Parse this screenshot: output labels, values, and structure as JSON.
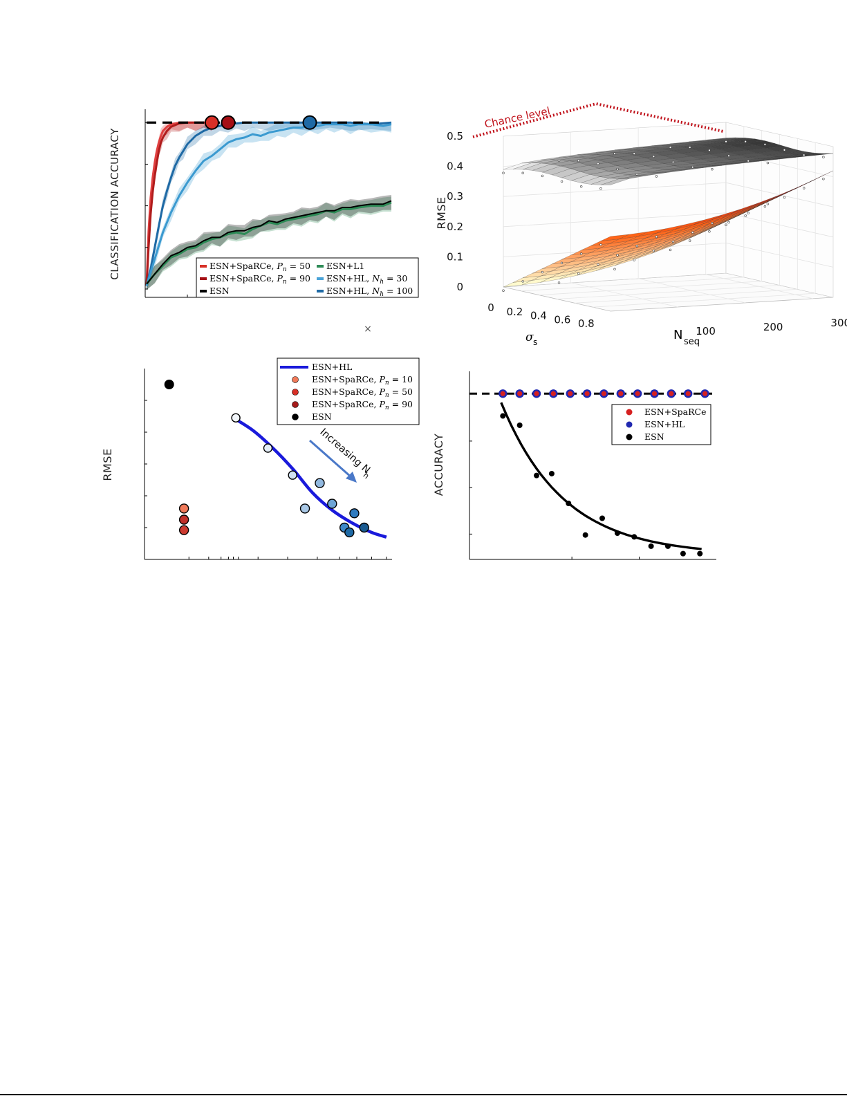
{
  "chart_data": [
    {
      "id": "panel-a",
      "type": "line",
      "ylabel": "CLASSIFICATION ACCURACY",
      "xlabel": "",
      "stray_mark": "×",
      "reference_line": "dashed",
      "legend": {
        "placement": "bottom-right",
        "entries": [
          {
            "key": "sparce50",
            "prefix": "ESN+SpaRCe, ",
            "var": "P",
            "sub": "n",
            "suffix": " = 50",
            "color": "#d73027"
          },
          {
            "key": "sparce90",
            "prefix": "ESN+SpaRCe, ",
            "var": "P",
            "sub": "n",
            "suffix": " = 90",
            "color": "#a50f15"
          },
          {
            "key": "esn",
            "prefix": "ESN",
            "var": "",
            "sub": "",
            "suffix": "",
            "color": "#000000"
          },
          {
            "key": "l1",
            "prefix": "ESN+L1",
            "var": "",
            "sub": "",
            "suffix": "",
            "color": "#2e8b57"
          },
          {
            "key": "hl30",
            "prefix": "ESN+HL,  ",
            "var": "N",
            "sub": "h",
            "suffix": " = 30",
            "color": "#4aa3d8"
          },
          {
            "key": "hl100",
            "prefix": "ESN+HL, ",
            "var": "N",
            "sub": "h",
            "suffix": " = 100",
            "color": "#1f6aa5"
          }
        ]
      },
      "series": [
        {
          "key": "sparce50",
          "color": "#e04040",
          "x": [
            0,
            0.5,
            1,
            1.5,
            2,
            2.5,
            3,
            3.5,
            4,
            5,
            6,
            8,
            10,
            12,
            14,
            16
          ],
          "y": [
            0.02,
            0.35,
            0.55,
            0.67,
            0.76,
            0.83,
            0.88,
            0.92,
            0.95,
            0.975,
            0.99,
            1.0,
            1.0,
            1.0,
            1.0,
            1.0
          ]
        },
        {
          "key": "sparce90",
          "color": "#b01c1c",
          "x": [
            0,
            0.5,
            1,
            1.5,
            2,
            2.5,
            3,
            3.5,
            4,
            5,
            6,
            8,
            10,
            12,
            14,
            16
          ],
          "y": [
            0.02,
            0.25,
            0.45,
            0.58,
            0.68,
            0.76,
            0.83,
            0.88,
            0.91,
            0.95,
            0.975,
            0.995,
            1.0,
            1.0,
            1.0,
            1.0
          ]
        },
        {
          "key": "hl100",
          "color": "#1f6aa5",
          "x": [
            0,
            1,
            2,
            3,
            4,
            5,
            6,
            7,
            8,
            9,
            10,
            12,
            14,
            16,
            18,
            20,
            22,
            24,
            26,
            30,
            34,
            40,
            45,
            50,
            55,
            60
          ],
          "y": [
            0.02,
            0.12,
            0.25,
            0.38,
            0.5,
            0.59,
            0.67,
            0.74,
            0.79,
            0.83,
            0.87,
            0.92,
            0.95,
            0.97,
            0.98,
            0.99,
            0.995,
            1.0,
            1.0,
            1.0,
            1.0,
            1.0,
            1.0,
            1.0,
            0.99,
            1.0
          ]
        },
        {
          "key": "hl30",
          "color": "#3b9ad0",
          "x": [
            0,
            2,
            4,
            6,
            8,
            10,
            12,
            14,
            16,
            18,
            20,
            22,
            24,
            26,
            28,
            30,
            32,
            34,
            36,
            38,
            40,
            42,
            44,
            46,
            48,
            50,
            52,
            55,
            58,
            60
          ],
          "y": [
            0.02,
            0.18,
            0.34,
            0.46,
            0.56,
            0.64,
            0.71,
            0.77,
            0.8,
            0.84,
            0.88,
            0.9,
            0.91,
            0.93,
            0.92,
            0.94,
            0.95,
            0.96,
            0.97,
            0.97,
            0.98,
            0.98,
            0.99,
            0.99,
            0.99,
            0.98,
            0.99,
            0.99,
            0.98,
            0.99
          ]
        },
        {
          "key": "l1",
          "color": "#2e8b57",
          "x": [
            0,
            2,
            4,
            6,
            8,
            10,
            12,
            14,
            16,
            18,
            20,
            22,
            24,
            26,
            28,
            30,
            32,
            34,
            36,
            38,
            40,
            42,
            44,
            46,
            48,
            50,
            52,
            55,
            58,
            60
          ],
          "y": [
            0.03,
            0.09,
            0.14,
            0.19,
            0.21,
            0.24,
            0.25,
            0.28,
            0.3,
            0.31,
            0.33,
            0.34,
            0.33,
            0.36,
            0.38,
            0.4,
            0.39,
            0.41,
            0.42,
            0.43,
            0.44,
            0.45,
            0.47,
            0.46,
            0.48,
            0.48,
            0.49,
            0.5,
            0.5,
            0.52
          ]
        },
        {
          "key": "esn",
          "color": "#000000",
          "x": [
            0,
            2,
            4,
            6,
            8,
            10,
            12,
            14,
            16,
            18,
            20,
            22,
            24,
            26,
            28,
            30,
            32,
            34,
            36,
            38,
            40,
            42,
            44,
            46,
            48,
            50,
            52,
            55,
            58,
            60
          ],
          "y": [
            0.03,
            0.09,
            0.15,
            0.2,
            0.22,
            0.25,
            0.26,
            0.29,
            0.31,
            0.31,
            0.34,
            0.35,
            0.35,
            0.37,
            0.38,
            0.41,
            0.4,
            0.42,
            0.43,
            0.44,
            0.45,
            0.46,
            0.47,
            0.47,
            0.49,
            0.49,
            0.5,
            0.51,
            0.51,
            0.53
          ]
        }
      ],
      "markers": [
        {
          "x": 16,
          "color": "#d73027"
        },
        {
          "x": 20,
          "color": "#a50f15"
        },
        {
          "x": 40,
          "color": "#1f6aa5"
        }
      ],
      "xlim": [
        0,
        60
      ],
      "ylim": [
        -0.05,
        1.08
      ]
    },
    {
      "id": "panel-b",
      "type": "surface",
      "ylabel": "RMSE",
      "xlabel_main": "σ",
      "xlabel_sub": "s",
      "zlabel_main": "N",
      "zlabel_sub": "seq",
      "annotation": "Chance level",
      "annotation_color": "#c0121b",
      "rmse_ticks": [
        "0",
        "0.1",
        "0.2",
        "0.3",
        "0.4",
        "0.5"
      ],
      "sigma_ticks": [
        "0",
        "0.2",
        "0.4",
        "0.6",
        "0.8"
      ],
      "nseq_ticks": [
        "100",
        "200",
        "300"
      ],
      "sigma_range": [
        0,
        0.9
      ],
      "nseq_range": [
        0,
        330
      ],
      "surfaces": [
        {
          "name": "",
          "colormap": "gray",
          "rmse_near": 0.39,
          "rmse_far": 0.48
        },
        {
          "name": "",
          "colormap": "hot",
          "rmse_near": 0.0,
          "rmse_far": 0.4
        }
      ]
    },
    {
      "id": "panel-c",
      "type": "scatter",
      "ylabel": "RMSE",
      "legend": {
        "placement": "top-right",
        "entries": [
          {
            "key": "hl",
            "prefix": "ESN+HL",
            "var": "",
            "sub": "",
            "suffix": "",
            "color": "#1a1adb",
            "kind": "line"
          },
          {
            "key": "s10",
            "prefix": "ESN+SpaRCe,  ",
            "var": "P",
            "sub": "n",
            "suffix": " = 10",
            "color": "#f07a5a",
            "kind": "dot"
          },
          {
            "key": "s50",
            "prefix": "ESN+SpaRCe,  ",
            "var": "P",
            "sub": "n",
            "suffix": " = 50",
            "color": "#d73027",
            "kind": "dot"
          },
          {
            "key": "s90",
            "prefix": "ESN+SpaRCe,  ",
            "var": "P",
            "sub": "n",
            "suffix": " = 90",
            "color": "#a51c1c",
            "kind": "dot"
          },
          {
            "key": "esn",
            "prefix": "ESN",
            "var": "",
            "sub": "",
            "suffix": "",
            "color": "#000000",
            "kind": "dot"
          }
        ]
      },
      "annotation": "Increasing N",
      "annotation_sub": "h",
      "annotation_color": "#4a78c8",
      "xlim": [
        0,
        10
      ],
      "ylim": [
        0,
        6
      ],
      "esn_point": {
        "x": 1.0,
        "y": 5.5,
        "color": "#000000"
      },
      "sparce_points": [
        {
          "x": 1.6,
          "y": 1.6,
          "color": "#f07a5a"
        },
        {
          "x": 1.6,
          "y": 1.25,
          "color": "#c0302a"
        },
        {
          "x": 1.6,
          "y": 0.92,
          "color": "#cc3a30"
        }
      ],
      "hl_fit": {
        "x": [
          3.6,
          4.4,
          5.2,
          6.0,
          6.8,
          7.6,
          8.4,
          9.2,
          9.8
        ],
        "y": [
          4.45,
          4.05,
          3.5,
          2.85,
          2.1,
          1.55,
          1.15,
          0.85,
          0.7
        ]
      },
      "hl_points": [
        {
          "x": 3.7,
          "y": 4.45,
          "color": "#f2f6fb"
        },
        {
          "x": 5.0,
          "y": 3.5,
          "color": "#e3edf7"
        },
        {
          "x": 6.0,
          "y": 2.65,
          "color": "#d2e2f2"
        },
        {
          "x": 6.5,
          "y": 1.6,
          "color": "#a9c8e6"
        },
        {
          "x": 7.1,
          "y": 2.4,
          "color": "#92b9e0"
        },
        {
          "x": 7.6,
          "y": 1.75,
          "color": "#6ea5d6"
        },
        {
          "x": 8.1,
          "y": 1.0,
          "color": "#3d88c8"
        },
        {
          "x": 8.5,
          "y": 1.45,
          "color": "#2f7bbf"
        },
        {
          "x": 8.3,
          "y": 0.85,
          "color": "#1f6aa5"
        },
        {
          "x": 8.9,
          "y": 1.0,
          "color": "#1a5a90"
        }
      ]
    },
    {
      "id": "panel-d",
      "type": "scatter",
      "ylabel": "ACCURACY",
      "reference_line": "dashed",
      "legend": {
        "placement": "top-right",
        "entries": [
          {
            "key": "sparce",
            "prefix": "ESN+SpaRCe",
            "var": "",
            "sub": "",
            "suffix": "",
            "color": "#d62020",
            "kind": "dot"
          },
          {
            "key": "hl",
            "prefix": "ESN+HL",
            "var": "",
            "sub": "",
            "suffix": "",
            "color": "#2028b0",
            "kind": "dot"
          },
          {
            "key": "esn",
            "prefix": "ESN",
            "var": "",
            "sub": "",
            "suffix": "",
            "color": "#000000",
            "kind": "dot"
          }
        ]
      },
      "xlim": [
        0,
        14
      ],
      "ylim": [
        0,
        1
      ],
      "top_points_x": [
        2,
        3,
        4,
        5,
        6,
        7,
        8,
        9,
        10,
        11,
        12,
        13,
        14
      ],
      "top_value": 0.88,
      "esn_points": [
        {
          "x": 1.9,
          "y": 0.76
        },
        {
          "x": 2.9,
          "y": 0.71
        },
        {
          "x": 3.9,
          "y": 0.44
        },
        {
          "x": 4.8,
          "y": 0.45
        },
        {
          "x": 5.8,
          "y": 0.29
        },
        {
          "x": 6.8,
          "y": 0.12
        },
        {
          "x": 7.8,
          "y": 0.21
        },
        {
          "x": 8.7,
          "y": 0.13
        },
        {
          "x": 9.7,
          "y": 0.11
        },
        {
          "x": 10.7,
          "y": 0.06
        },
        {
          "x": 11.7,
          "y": 0.06
        },
        {
          "x": 12.6,
          "y": 0.02
        },
        {
          "x": 13.6,
          "y": 0.02
        }
      ],
      "esn_fit": {
        "a": 0.82,
        "b": 0.27,
        "x0": 1.8,
        "x1": 13.7
      }
    }
  ]
}
